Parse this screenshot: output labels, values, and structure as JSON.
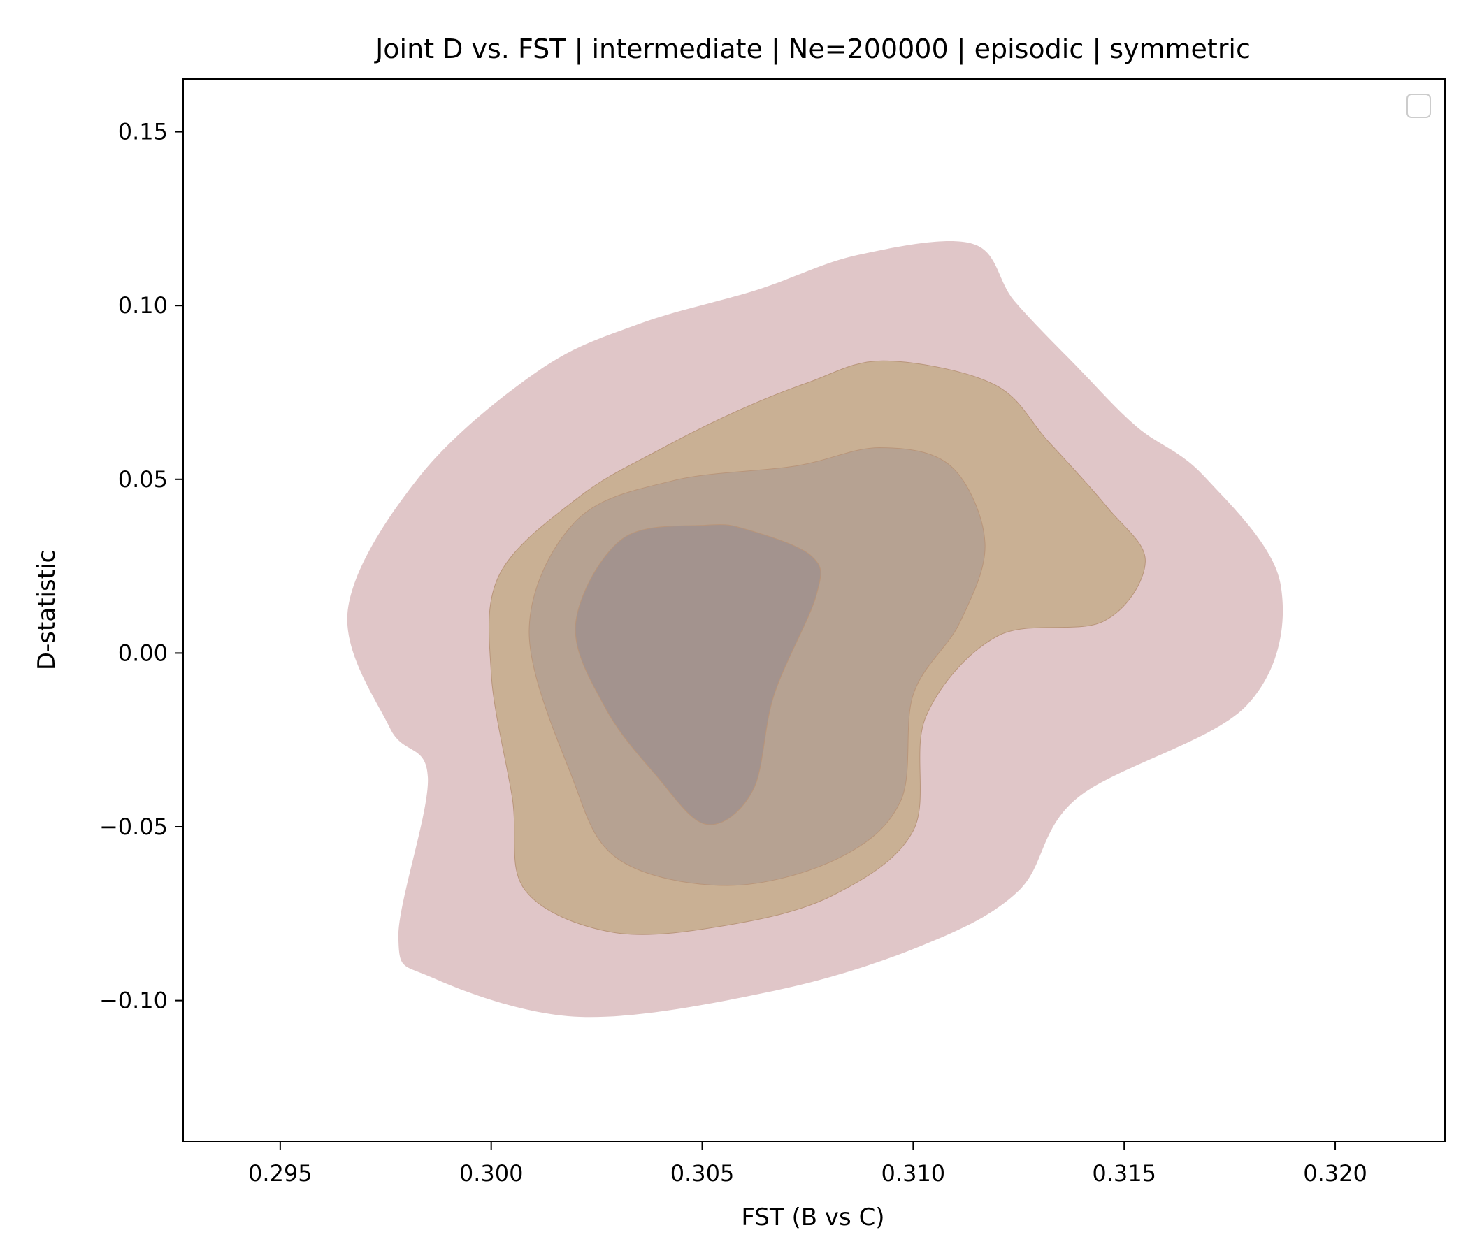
{
  "chart_data": {
    "type": "contour",
    "title": "Joint D vs. FST | intermediate | Ne=200000 | episodic | symmetric",
    "xlabel": "FST (B vs C)",
    "ylabel": "D-statistic",
    "xlim": [
      0.2927,
      0.3226
    ],
    "ylim": [
      -0.1405,
      0.1652
    ],
    "xticks": [
      0.295,
      0.3,
      0.305,
      0.31,
      0.315,
      0.32
    ],
    "xtick_labels": [
      "0.295",
      "0.300",
      "0.305",
      "0.310",
      "0.315",
      "0.320"
    ],
    "yticks": [
      -0.1,
      -0.05,
      0.0,
      0.05,
      0.1,
      0.15
    ],
    "ytick_labels": [
      "−0.10",
      "−0.05",
      "0.00",
      "0.05",
      "0.10",
      "0.15"
    ],
    "legend": {
      "location": "upper right",
      "entries": []
    },
    "grid": false,
    "levels": [
      {
        "level": 1,
        "color": "#e0c6c8",
        "points": [
          [
            0.3114,
            0.1178
          ],
          [
            0.3087,
            0.1146
          ],
          [
            0.3063,
            0.1045
          ],
          [
            0.3035,
            0.0947
          ],
          [
            0.3011,
            0.0811
          ],
          [
            0.2983,
            0.0508
          ],
          [
            0.2966,
            0.0122
          ],
          [
            0.2976,
            -0.0216
          ],
          [
            0.2985,
            -0.0359
          ],
          [
            0.2978,
            -0.0817
          ],
          [
            0.2986,
            -0.0934
          ],
          [
            0.3021,
            -0.1047
          ],
          [
            0.3067,
            -0.0972
          ],
          [
            0.3102,
            -0.0842
          ],
          [
            0.3125,
            -0.0684
          ],
          [
            0.3139,
            -0.0416
          ],
          [
            0.3179,
            -0.0151
          ],
          [
            0.3187,
            0.0201
          ],
          [
            0.3169,
            0.0508
          ],
          [
            0.3153,
            0.0651
          ],
          [
            0.3139,
            0.0822
          ],
          [
            0.3124,
            0.1013
          ],
          [
            0.3114,
            0.1178
          ]
        ]
      },
      {
        "level": 2,
        "color": "#c9b094",
        "points": [
          [
            0.3093,
            0.0841
          ],
          [
            0.3075,
            0.0778
          ],
          [
            0.3058,
            0.0695
          ],
          [
            0.304,
            0.0586
          ],
          [
            0.3021,
            0.0451
          ],
          [
            0.3002,
            0.0227
          ],
          [
            0.3,
            -0.0058
          ],
          [
            0.3005,
            -0.0417
          ],
          [
            0.3008,
            -0.0682
          ],
          [
            0.3029,
            -0.0804
          ],
          [
            0.3056,
            -0.0783
          ],
          [
            0.3081,
            -0.0697
          ],
          [
            0.31,
            -0.0511
          ],
          [
            0.3103,
            -0.0183
          ],
          [
            0.312,
            0.0049
          ],
          [
            0.3145,
            0.0091
          ],
          [
            0.3155,
            0.0263
          ],
          [
            0.3146,
            0.0419
          ],
          [
            0.3132,
            0.0609
          ],
          [
            0.3119,
            0.0774
          ],
          [
            0.3093,
            0.0841
          ]
        ]
      },
      {
        "level": 3,
        "color": "#b6a292",
        "points": [
          [
            0.3092,
            0.0591
          ],
          [
            0.3072,
            0.0538
          ],
          [
            0.3043,
            0.0496
          ],
          [
            0.302,
            0.0379
          ],
          [
            0.3009,
            0.0065
          ],
          [
            0.3019,
            -0.0352
          ],
          [
            0.303,
            -0.0592
          ],
          [
            0.3056,
            -0.0669
          ],
          [
            0.3082,
            -0.0592
          ],
          [
            0.3097,
            -0.0426
          ],
          [
            0.31,
            -0.0119
          ],
          [
            0.3111,
            0.0087
          ],
          [
            0.3117,
            0.0317
          ],
          [
            0.3109,
            0.0537
          ],
          [
            0.3092,
            0.0591
          ]
        ]
      },
      {
        "level": 4,
        "color": "#a3938e",
        "points": [
          [
            0.3051,
            0.0368
          ],
          [
            0.3031,
            0.0328
          ],
          [
            0.302,
            0.0084
          ],
          [
            0.3027,
            -0.0157
          ],
          [
            0.3039,
            -0.0351
          ],
          [
            0.3051,
            -0.0493
          ],
          [
            0.3062,
            -0.0395
          ],
          [
            0.3067,
            -0.0121
          ],
          [
            0.3077,
            0.0165
          ],
          [
            0.3076,
            0.0278
          ],
          [
            0.3061,
            0.0354
          ],
          [
            0.3051,
            0.0368
          ]
        ]
      }
    ]
  }
}
